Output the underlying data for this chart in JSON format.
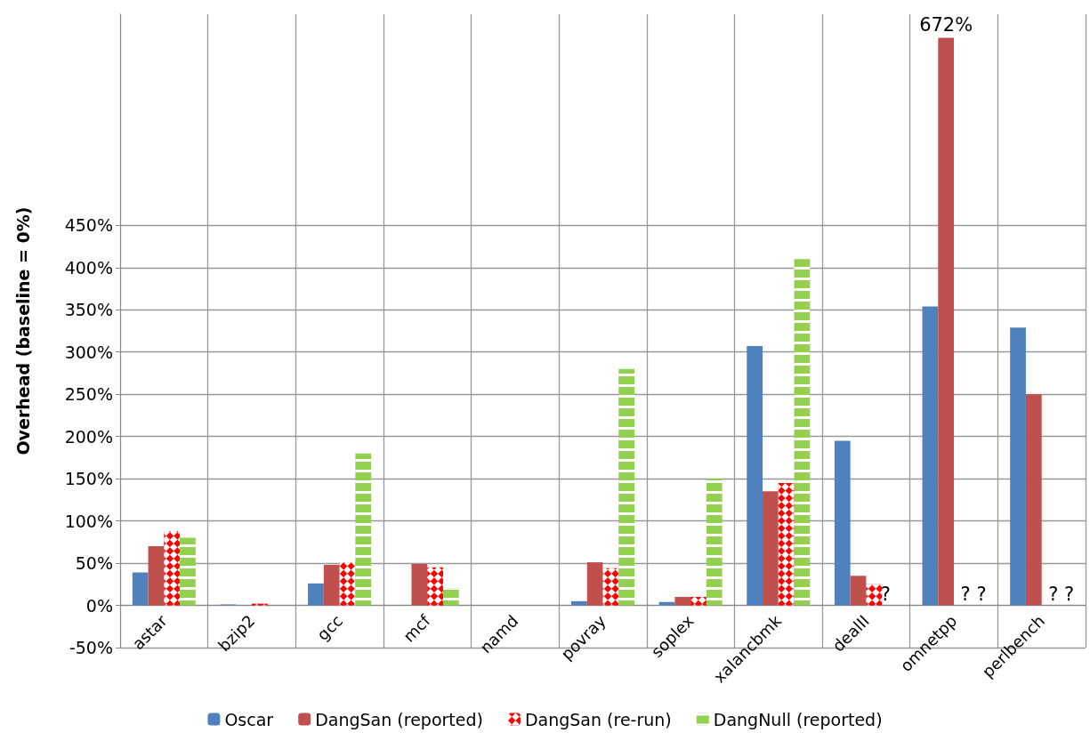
{
  "chart_data": {
    "type": "bar",
    "ylabel": "Overhead (baseline = 0%)",
    "categories": [
      "astar",
      "bzip2",
      "gcc",
      "mcf",
      "namd",
      "povray",
      "soplex",
      "xalancbmk",
      "dealII",
      "omnetpp",
      "perlbench"
    ],
    "series": [
      {
        "name": "Oscar",
        "color": "#4f81bd",
        "values": [
          39,
          1,
          26,
          null,
          null,
          5,
          4,
          307,
          195,
          354,
          329
        ]
      },
      {
        "name": "DangSan (reported)",
        "color": "#c0504d",
        "values": [
          70,
          null,
          48,
          49,
          null,
          51,
          10,
          135,
          35,
          672,
          250
        ],
        "value_labels": [
          null,
          null,
          null,
          null,
          null,
          null,
          null,
          null,
          null,
          "672%",
          null
        ]
      },
      {
        "name": "DangSan (re-run)",
        "color": "#ff0000",
        "values": [
          88,
          2,
          51,
          45,
          null,
          44,
          10,
          145,
          25,
          null,
          null
        ]
      },
      {
        "name": "DangNull (reported)",
        "color": "#92d050",
        "values": [
          80,
          null,
          180,
          20,
          null,
          280,
          150,
          410,
          null,
          null,
          null
        ]
      }
    ],
    "ylim": [
      -50,
      700
    ],
    "yticks": [
      {
        "value": -50,
        "label": "-50%"
      },
      {
        "value": 0,
        "label": "0%"
      },
      {
        "value": 50,
        "label": "50%"
      },
      {
        "value": 100,
        "label": "100%"
      },
      {
        "value": 150,
        "label": "150%"
      },
      {
        "value": 200,
        "label": "200%"
      },
      {
        "value": 250,
        "label": "250%"
      },
      {
        "value": 300,
        "label": "300%"
      },
      {
        "value": 350,
        "label": "350%"
      },
      {
        "value": 400,
        "label": "400%"
      },
      {
        "value": 450,
        "label": "450%"
      }
    ],
    "annotations": [
      {
        "text": "?",
        "x": "dealII",
        "y": 0
      },
      {
        "text": "? ?",
        "x": "omnetpp",
        "y": 0
      },
      {
        "text": "? ?",
        "x": "perlbench",
        "y": 0
      }
    ],
    "grid": true,
    "legend": "bottom"
  }
}
